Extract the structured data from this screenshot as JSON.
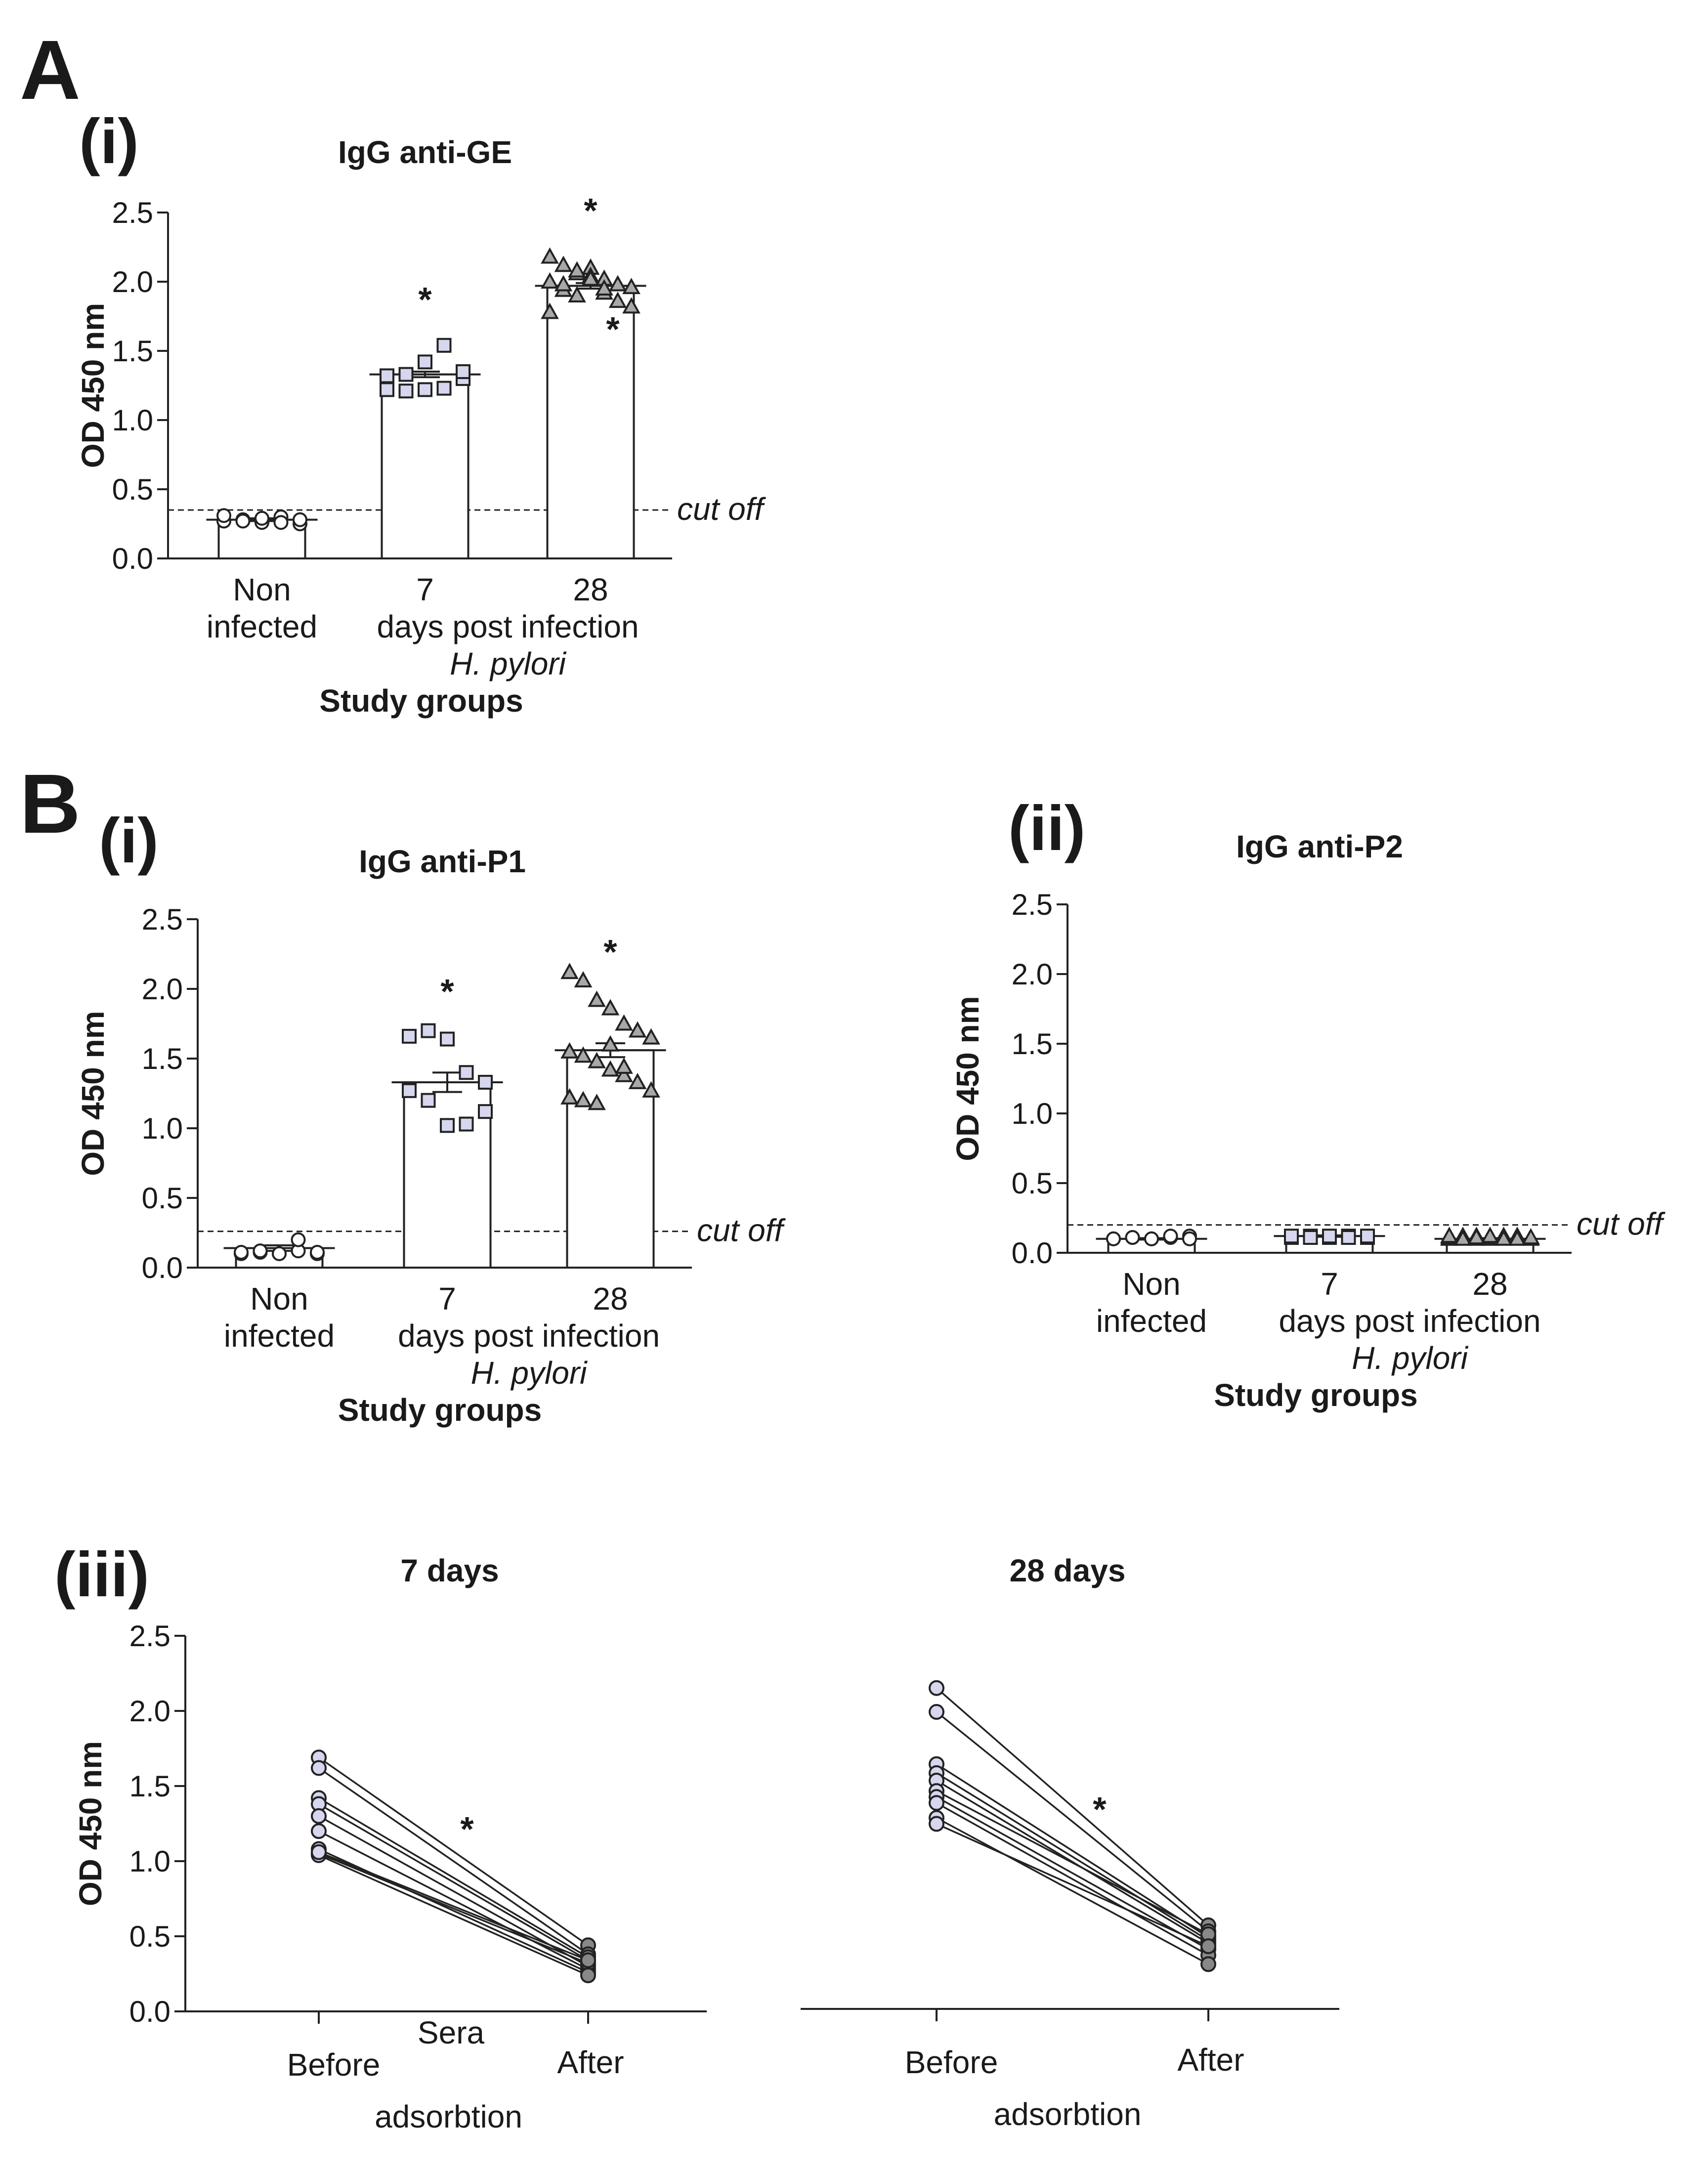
{
  "figure": {
    "panel_labels": [
      "A",
      "B"
    ]
  },
  "chart_data": [
    {
      "id": "A-i",
      "type": "scatter",
      "panel": "A",
      "sublabel": "(i)",
      "title": "IgG anti-GE",
      "ylabel": "OD 450 nm",
      "ylim": [
        0,
        2.5
      ],
      "yticks": [
        "0.0",
        "0.5",
        "1.0",
        "1.5",
        "2.0",
        "2.5"
      ],
      "categories": [
        "Non infected",
        "7",
        "28"
      ],
      "category_lines": [
        [
          "Non",
          "infected"
        ],
        [
          "7"
        ],
        [
          "28"
        ]
      ],
      "xlabel_lines": [
        "days post infection",
        "H. pylori",
        "Study groups"
      ],
      "cutoff": 0.35,
      "cutoff_label": "cut off",
      "bars": [
        0.28,
        1.33,
        1.97
      ],
      "errors": [
        0.01,
        0.02,
        0.02
      ],
      "series": [
        {
          "marker": "circle",
          "color": "#ffffff",
          "values": [
            0.27,
            0.28,
            0.26,
            0.3,
            0.25,
            0.31,
            0.27,
            0.29,
            0.26,
            0.28
          ]
        },
        {
          "marker": "square",
          "color": "#d6d6ee",
          "values": [
            1.32,
            1.33,
            1.42,
            1.54,
            1.3,
            1.22,
            1.21,
            1.22,
            1.23,
            1.35
          ]
        },
        {
          "marker": "triangle",
          "color": "#a8a8a8",
          "values": [
            2.18,
            2.12,
            2.06,
            2.1,
            2.02,
            1.98,
            1.96,
            2.0,
            1.94,
            1.9,
            2.04,
            1.92,
            1.86,
            1.82,
            1.78,
            1.98,
            2.08,
            2.02,
            1.95
          ]
        }
      ],
      "stars": [
        "*",
        "*"
      ],
      "extra_stars": [
        "*"
      ]
    },
    {
      "id": "B-i",
      "type": "scatter",
      "panel": "B",
      "sublabel": "(i)",
      "title": "IgG anti-P1",
      "ylabel": "OD 450 nm",
      "ylim": [
        0,
        2.5
      ],
      "yticks": [
        "0.0",
        "0.5",
        "1.0",
        "1.5",
        "2.0",
        "2.5"
      ],
      "categories": [
        "Non infected",
        "7",
        "28"
      ],
      "category_lines": [
        [
          "Non",
          "infected"
        ],
        [
          "7"
        ],
        [
          "28"
        ]
      ],
      "xlabel_lines": [
        "days post infection",
        "H. pylori",
        "Study groups"
      ],
      "cutoff": 0.26,
      "cutoff_label": "cut off",
      "bars": [
        0.14,
        1.33,
        1.56
      ],
      "errors": [
        0.02,
        0.07,
        0.05
      ],
      "series": [
        {
          "marker": "circle",
          "color": "#ffffff",
          "values": [
            0.1,
            0.11,
            0.1,
            0.12,
            0.1,
            0.11,
            0.12,
            0.1,
            0.2,
            0.11
          ]
        },
        {
          "marker": "square",
          "color": "#d6d6ee",
          "values": [
            1.66,
            1.7,
            1.64,
            1.4,
            1.33,
            1.27,
            1.2,
            1.02,
            1.03,
            1.12
          ]
        },
        {
          "marker": "triangle",
          "color": "#a8a8a8",
          "values": [
            2.12,
            2.06,
            1.92,
            1.86,
            1.75,
            1.7,
            1.65,
            1.55,
            1.52,
            1.48,
            1.42,
            1.38,
            1.33,
            1.27,
            1.22,
            1.2,
            1.18,
            1.6,
            1.44
          ]
        }
      ],
      "stars": [
        "*",
        "*"
      ]
    },
    {
      "id": "B-ii",
      "type": "scatter",
      "panel": "B",
      "sublabel": "(ii)",
      "title": "IgG anti-P2",
      "ylabel": "OD 450 nm",
      "ylim": [
        0,
        2.5
      ],
      "yticks": [
        "0.0",
        "0.5",
        "1.0",
        "1.5",
        "2.0",
        "2.5"
      ],
      "categories": [
        "Non infected",
        "7",
        "28"
      ],
      "category_lines": [
        [
          "Non",
          "infected"
        ],
        [
          "7"
        ],
        [
          "28"
        ]
      ],
      "xlabel_lines": [
        "days post infection",
        "H. pylori",
        "Study groups"
      ],
      "cutoff": 0.2,
      "cutoff_label": "cut off",
      "bars": [
        0.1,
        0.12,
        0.1
      ],
      "errors": [
        0.005,
        0.005,
        0.005
      ],
      "series": [
        {
          "marker": "circle",
          "color": "#ffffff",
          "values": [
            0.1,
            0.11,
            0.1,
            0.11,
            0.12,
            0.1,
            0.11,
            0.1,
            0.12,
            0.1
          ]
        },
        {
          "marker": "square",
          "color": "#d6d6ee",
          "values": [
            0.11,
            0.12,
            0.11,
            0.12,
            0.11,
            0.12,
            0.11,
            0.12,
            0.11,
            0.12
          ]
        },
        {
          "marker": "triangle",
          "color": "#a8a8a8",
          "values": [
            0.1,
            0.11,
            0.12,
            0.1,
            0.11,
            0.12,
            0.1,
            0.11,
            0.12,
            0.1,
            0.11,
            0.12,
            0.1,
            0.11,
            0.12,
            0.1,
            0.11,
            0.12,
            0.1
          ]
        }
      ],
      "stars": []
    },
    {
      "id": "B-iii-7",
      "type": "line",
      "sublabel": "(iii)",
      "title": "7 days",
      "ylabel": "OD 450 nm",
      "ylim": [
        0,
        2.5
      ],
      "yticks": [
        "0.0",
        "0.5",
        "1.0",
        "1.5",
        "2.0",
        "2.5"
      ],
      "categories": [
        "Before",
        "After"
      ],
      "xlabel_mid": "Sera",
      "xlabel": "adsorbtion",
      "marker_before": "#d6d6ee",
      "marker_after": "#888888",
      "pairs": [
        [
          1.69,
          0.44
        ],
        [
          1.62,
          0.38
        ],
        [
          1.42,
          0.36
        ],
        [
          1.38,
          0.34
        ],
        [
          1.3,
          0.3
        ],
        [
          1.2,
          0.28
        ],
        [
          1.08,
          0.26
        ],
        [
          1.05,
          0.32
        ],
        [
          1.04,
          0.24
        ],
        [
          1.06,
          0.34
        ]
      ],
      "stars": [
        "*"
      ]
    },
    {
      "id": "B-iii-28",
      "type": "line",
      "title": "28 days",
      "ylim": [
        0,
        2.5
      ],
      "categories": [
        "Before",
        "After"
      ],
      "xlabel": "adsorbtion",
      "marker_before": "#d6d6ee",
      "marker_after": "#888888",
      "pairs": [
        [
          2.15,
          0.56
        ],
        [
          1.99,
          0.52
        ],
        [
          1.64,
          0.48
        ],
        [
          1.58,
          0.46
        ],
        [
          1.53,
          0.44
        ],
        [
          1.46,
          0.5
        ],
        [
          1.42,
          0.4
        ],
        [
          1.38,
          0.36
        ],
        [
          1.28,
          0.3
        ],
        [
          1.24,
          0.42
        ]
      ],
      "stars": [
        "*"
      ]
    }
  ]
}
